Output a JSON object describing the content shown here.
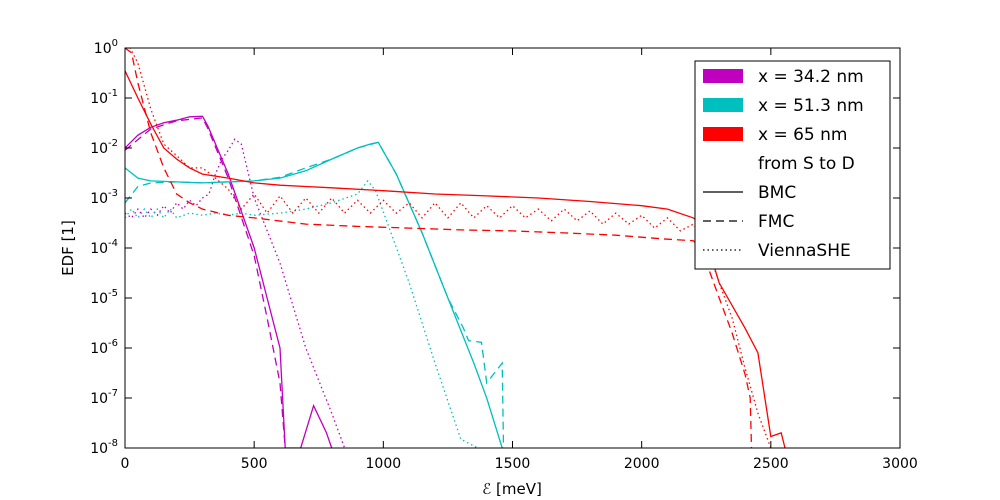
{
  "chart_data": {
    "type": "line",
    "title": "",
    "xlabel": "ℰ [meV]",
    "ylabel": "EDF [1]",
    "xlim": [
      0,
      3000
    ],
    "ylim": [
      1e-08,
      1
    ],
    "yscale": "log",
    "grid": false,
    "legend_position": "top-right",
    "x_ticks": [
      "0",
      "500",
      "1000",
      "1500",
      "2000",
      "2500",
      "3000"
    ],
    "y_ticks": [
      {
        "base": "10",
        "exp": "-8"
      },
      {
        "base": "10",
        "exp": "-7"
      },
      {
        "base": "10",
        "exp": "-6"
      },
      {
        "base": "10",
        "exp": "-5"
      },
      {
        "base": "10",
        "exp": "-4"
      },
      {
        "base": "10",
        "exp": "-3"
      },
      {
        "base": "10",
        "exp": "-2"
      },
      {
        "base": "10",
        "exp": "-1"
      },
      {
        "base": "10",
        "exp": "0"
      }
    ],
    "legend": {
      "entries": [
        {
          "label": "x = 34.2 nm",
          "swatch": "fill",
          "color": "#bf00bf"
        },
        {
          "label": "x = 51.3 nm",
          "swatch": "fill",
          "color": "#00bfbf"
        },
        {
          "label": "x = 65 nm",
          "swatch": "fill",
          "color": "#ff0000"
        },
        {
          "label": "from S to D",
          "swatch": "none",
          "color": "#000000"
        },
        {
          "label": "BMC",
          "swatch": "solid",
          "color": "#000000"
        },
        {
          "label": "FMC",
          "swatch": "dashed",
          "color": "#000000"
        },
        {
          "label": "ViennaSHE",
          "swatch": "dotted",
          "color": "#000000"
        }
      ]
    },
    "series": [
      {
        "position": "x = 34.2 nm",
        "method": "BMC",
        "color": "#bf00bf",
        "style": "solid",
        "x": [
          0,
          50,
          100,
          150,
          200,
          250,
          300,
          320,
          400,
          500,
          550,
          600,
          620,
          680,
          730,
          780,
          800
        ],
        "y": [
          0.01,
          0.018,
          0.026,
          0.032,
          0.036,
          0.042,
          0.043,
          0.028,
          0.003,
          0.0001,
          1e-05,
          1e-06,
          1e-08,
          1e-08,
          7e-08,
          2e-08,
          1e-08
        ]
      },
      {
        "position": "x = 34.2 nm",
        "method": "FMC",
        "color": "#bf00bf",
        "style": "dashed",
        "x": [
          0,
          100,
          200,
          300,
          320,
          400,
          500,
          550,
          600,
          620
        ],
        "y": [
          0.009,
          0.024,
          0.035,
          0.04,
          0.025,
          0.0025,
          7e-05,
          4e-06,
          2e-07,
          1e-08
        ]
      },
      {
        "position": "x = 34.2 nm",
        "method": "ViennaSHE",
        "color": "#bf00bf",
        "style": "dotted",
        "x": [
          0,
          25,
          50,
          75,
          100,
          125,
          150,
          175,
          200,
          225,
          250,
          275,
          300,
          325,
          350,
          375,
          400,
          425,
          450,
          500,
          600,
          700,
          800,
          850
        ],
        "y": [
          0.0005,
          0.0004,
          0.0006,
          0.0004,
          0.0006,
          0.00045,
          0.0007,
          0.0005,
          0.0008,
          0.0006,
          0.0009,
          0.0007,
          0.001,
          0.0012,
          0.003,
          0.006,
          0.009,
          0.015,
          0.012,
          0.001,
          5e-05,
          1e-06,
          5e-08,
          1e-08
        ]
      },
      {
        "position": "x = 51.3 nm",
        "method": "BMC",
        "color": "#00bfbf",
        "style": "solid",
        "x": [
          0,
          50,
          100,
          200,
          300,
          400,
          500,
          600,
          700,
          800,
          900,
          950,
          980,
          1050,
          1150,
          1250,
          1350,
          1400,
          1460,
          1465
        ],
        "y": [
          0.004,
          0.0025,
          0.0022,
          0.0021,
          0.002,
          0.0021,
          0.0022,
          0.0025,
          0.0035,
          0.006,
          0.01,
          0.012,
          0.013,
          0.003,
          0.0002,
          1e-05,
          5e-07,
          1e-07,
          1e-08,
          1e-08
        ]
      },
      {
        "position": "x = 51.3 nm",
        "method": "FMC",
        "color": "#00bfbf",
        "style": "dashed",
        "x": [
          0,
          50,
          100,
          200,
          300,
          400,
          500,
          600,
          700,
          800,
          900,
          980,
          1050,
          1150,
          1250,
          1310,
          1330,
          1380,
          1400,
          1460,
          1465
        ],
        "y": [
          0.0008,
          0.0017,
          0.002,
          0.0021,
          0.002,
          0.0021,
          0.0022,
          0.0026,
          0.004,
          0.006,
          0.01,
          0.013,
          0.003,
          0.0002,
          1e-05,
          2.5e-06,
          1.4e-06,
          1.3e-06,
          2e-07,
          5e-07,
          1e-08
        ]
      },
      {
        "position": "x = 51.3 nm",
        "method": "ViennaSHE",
        "color": "#00bfbf",
        "style": "dotted",
        "x": [
          0,
          25,
          50,
          75,
          100,
          125,
          150,
          175,
          200,
          250,
          300,
          350,
          400,
          450,
          500,
          600,
          700,
          800,
          900,
          940,
          970,
          1100,
          1200,
          1300,
          1365
        ],
        "y": [
          0.0004,
          0.0006,
          0.0004,
          0.0006,
          0.0004,
          0.0006,
          0.0004,
          0.0006,
          0.0004,
          0.0005,
          0.00045,
          0.0005,
          0.00045,
          0.0005,
          0.00045,
          0.0005,
          0.0006,
          0.0008,
          0.0012,
          0.0022,
          0.0014,
          2e-05,
          5e-07,
          1.5e-08,
          1e-08
        ]
      },
      {
        "position": "x = 65 nm",
        "method": "BMC",
        "color": "#ff0000",
        "style": "solid",
        "x": [
          0,
          50,
          100,
          150,
          200,
          250,
          300,
          400,
          500,
          600,
          700,
          800,
          1000,
          1200,
          1400,
          1600,
          1800,
          2000,
          2100,
          2200,
          2230,
          2300,
          2400,
          2450,
          2500,
          2540,
          2555
        ],
        "y": [
          0.35,
          0.1,
          0.03,
          0.01,
          0.006,
          0.004,
          0.003,
          0.0025,
          0.002,
          0.0018,
          0.0017,
          0.0016,
          0.0014,
          0.0012,
          0.0011,
          0.001,
          0.00085,
          0.0007,
          0.0006,
          0.0004,
          0.0003,
          2e-05,
          2.5e-06,
          8e-07,
          1.7e-08,
          2e-08,
          1e-08
        ]
      },
      {
        "position": "x = 65 nm",
        "method": "FMC",
        "color": "#ff0000",
        "style": "dashed",
        "x": [
          0,
          25,
          50,
          100,
          150,
          200,
          250,
          300,
          400,
          500,
          700,
          900,
          1100,
          1300,
          1500,
          1700,
          1900,
          2100,
          2200,
          2230,
          2300,
          2350,
          2400,
          2420,
          2425
        ],
        "y": [
          1.0,
          0.8,
          0.2,
          0.02,
          0.004,
          0.0012,
          0.0008,
          0.0006,
          0.00045,
          0.0004,
          0.0003,
          0.00027,
          0.00025,
          0.00023,
          0.00022,
          0.0002,
          0.00018,
          0.00015,
          0.00014,
          0.0001,
          1e-05,
          2e-06,
          3e-07,
          1e-07,
          1e-08
        ]
      },
      {
        "position": "x = 65 nm",
        "method": "ViennaSHE",
        "color": "#ff0000",
        "style": "dotted",
        "x": [
          0,
          20,
          50,
          100,
          150,
          200,
          250,
          300,
          350,
          400,
          450,
          500,
          550,
          600,
          650,
          700,
          750,
          800,
          850,
          900,
          950,
          1000,
          1050,
          1100,
          1150,
          1200,
          1250,
          1300,
          1350,
          1400,
          1450,
          1500,
          1550,
          1600,
          1650,
          1700,
          1750,
          1800,
          1850,
          1900,
          1950,
          2000,
          2050,
          2100,
          2150,
          2200,
          2250,
          2300,
          2350,
          2400,
          2450,
          2500
        ],
        "y": [
          1.0,
          1.0,
          0.5,
          0.06,
          0.012,
          0.007,
          0.004,
          0.004,
          0.0025,
          0.0015,
          0.0006,
          0.0012,
          0.0005,
          0.0011,
          0.0005,
          0.001,
          0.0005,
          0.001,
          0.0005,
          0.0009,
          0.0005,
          0.0009,
          0.0005,
          0.0008,
          0.0004,
          0.0008,
          0.0004,
          0.0008,
          0.0004,
          0.0007,
          0.0004,
          0.0007,
          0.0004,
          0.0006,
          0.00035,
          0.0006,
          0.00035,
          0.00055,
          0.0003,
          0.0005,
          0.0003,
          0.00045,
          0.00025,
          0.0004,
          0.00022,
          0.0003,
          0.00012,
          2e-05,
          4e-06,
          4e-07,
          5e-08,
          1e-08
        ]
      }
    ]
  }
}
